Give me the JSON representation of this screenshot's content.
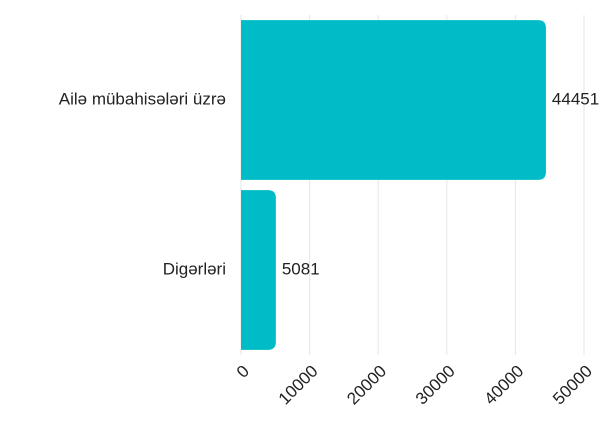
{
  "chart_data": {
    "type": "hbar",
    "categories": [
      "Ailə mübahisələri üzrə",
      "Digərləri"
    ],
    "values": [
      44451,
      5081
    ],
    "color": "#00bcc6",
    "xlim": [
      0,
      50000
    ],
    "xticks": [
      0,
      10000,
      20000,
      30000,
      40000,
      50000
    ],
    "grid": true
  }
}
